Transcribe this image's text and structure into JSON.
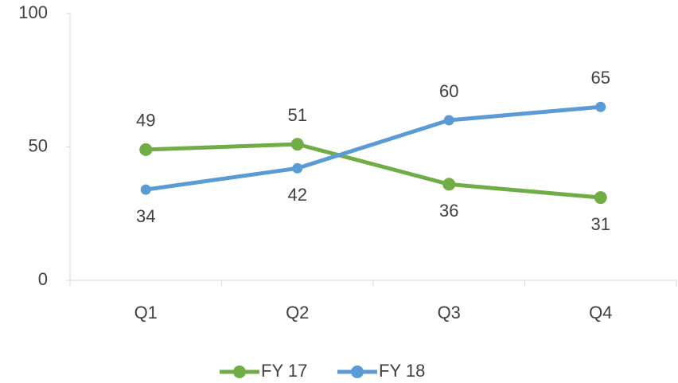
{
  "chart_data": {
    "type": "line",
    "categories": [
      "Q1",
      "Q2",
      "Q3",
      "Q4"
    ],
    "series": [
      {
        "name": "FY 17",
        "color": "#70ad47",
        "values": [
          49,
          51,
          36,
          31
        ]
      },
      {
        "name": "FY 18",
        "color": "#5b9bd5",
        "values": [
          34,
          42,
          60,
          65
        ]
      }
    ],
    "ylim": [
      0,
      100
    ],
    "yticks": [
      0,
      50,
      100
    ],
    "grid": false,
    "legend": "bottom"
  }
}
